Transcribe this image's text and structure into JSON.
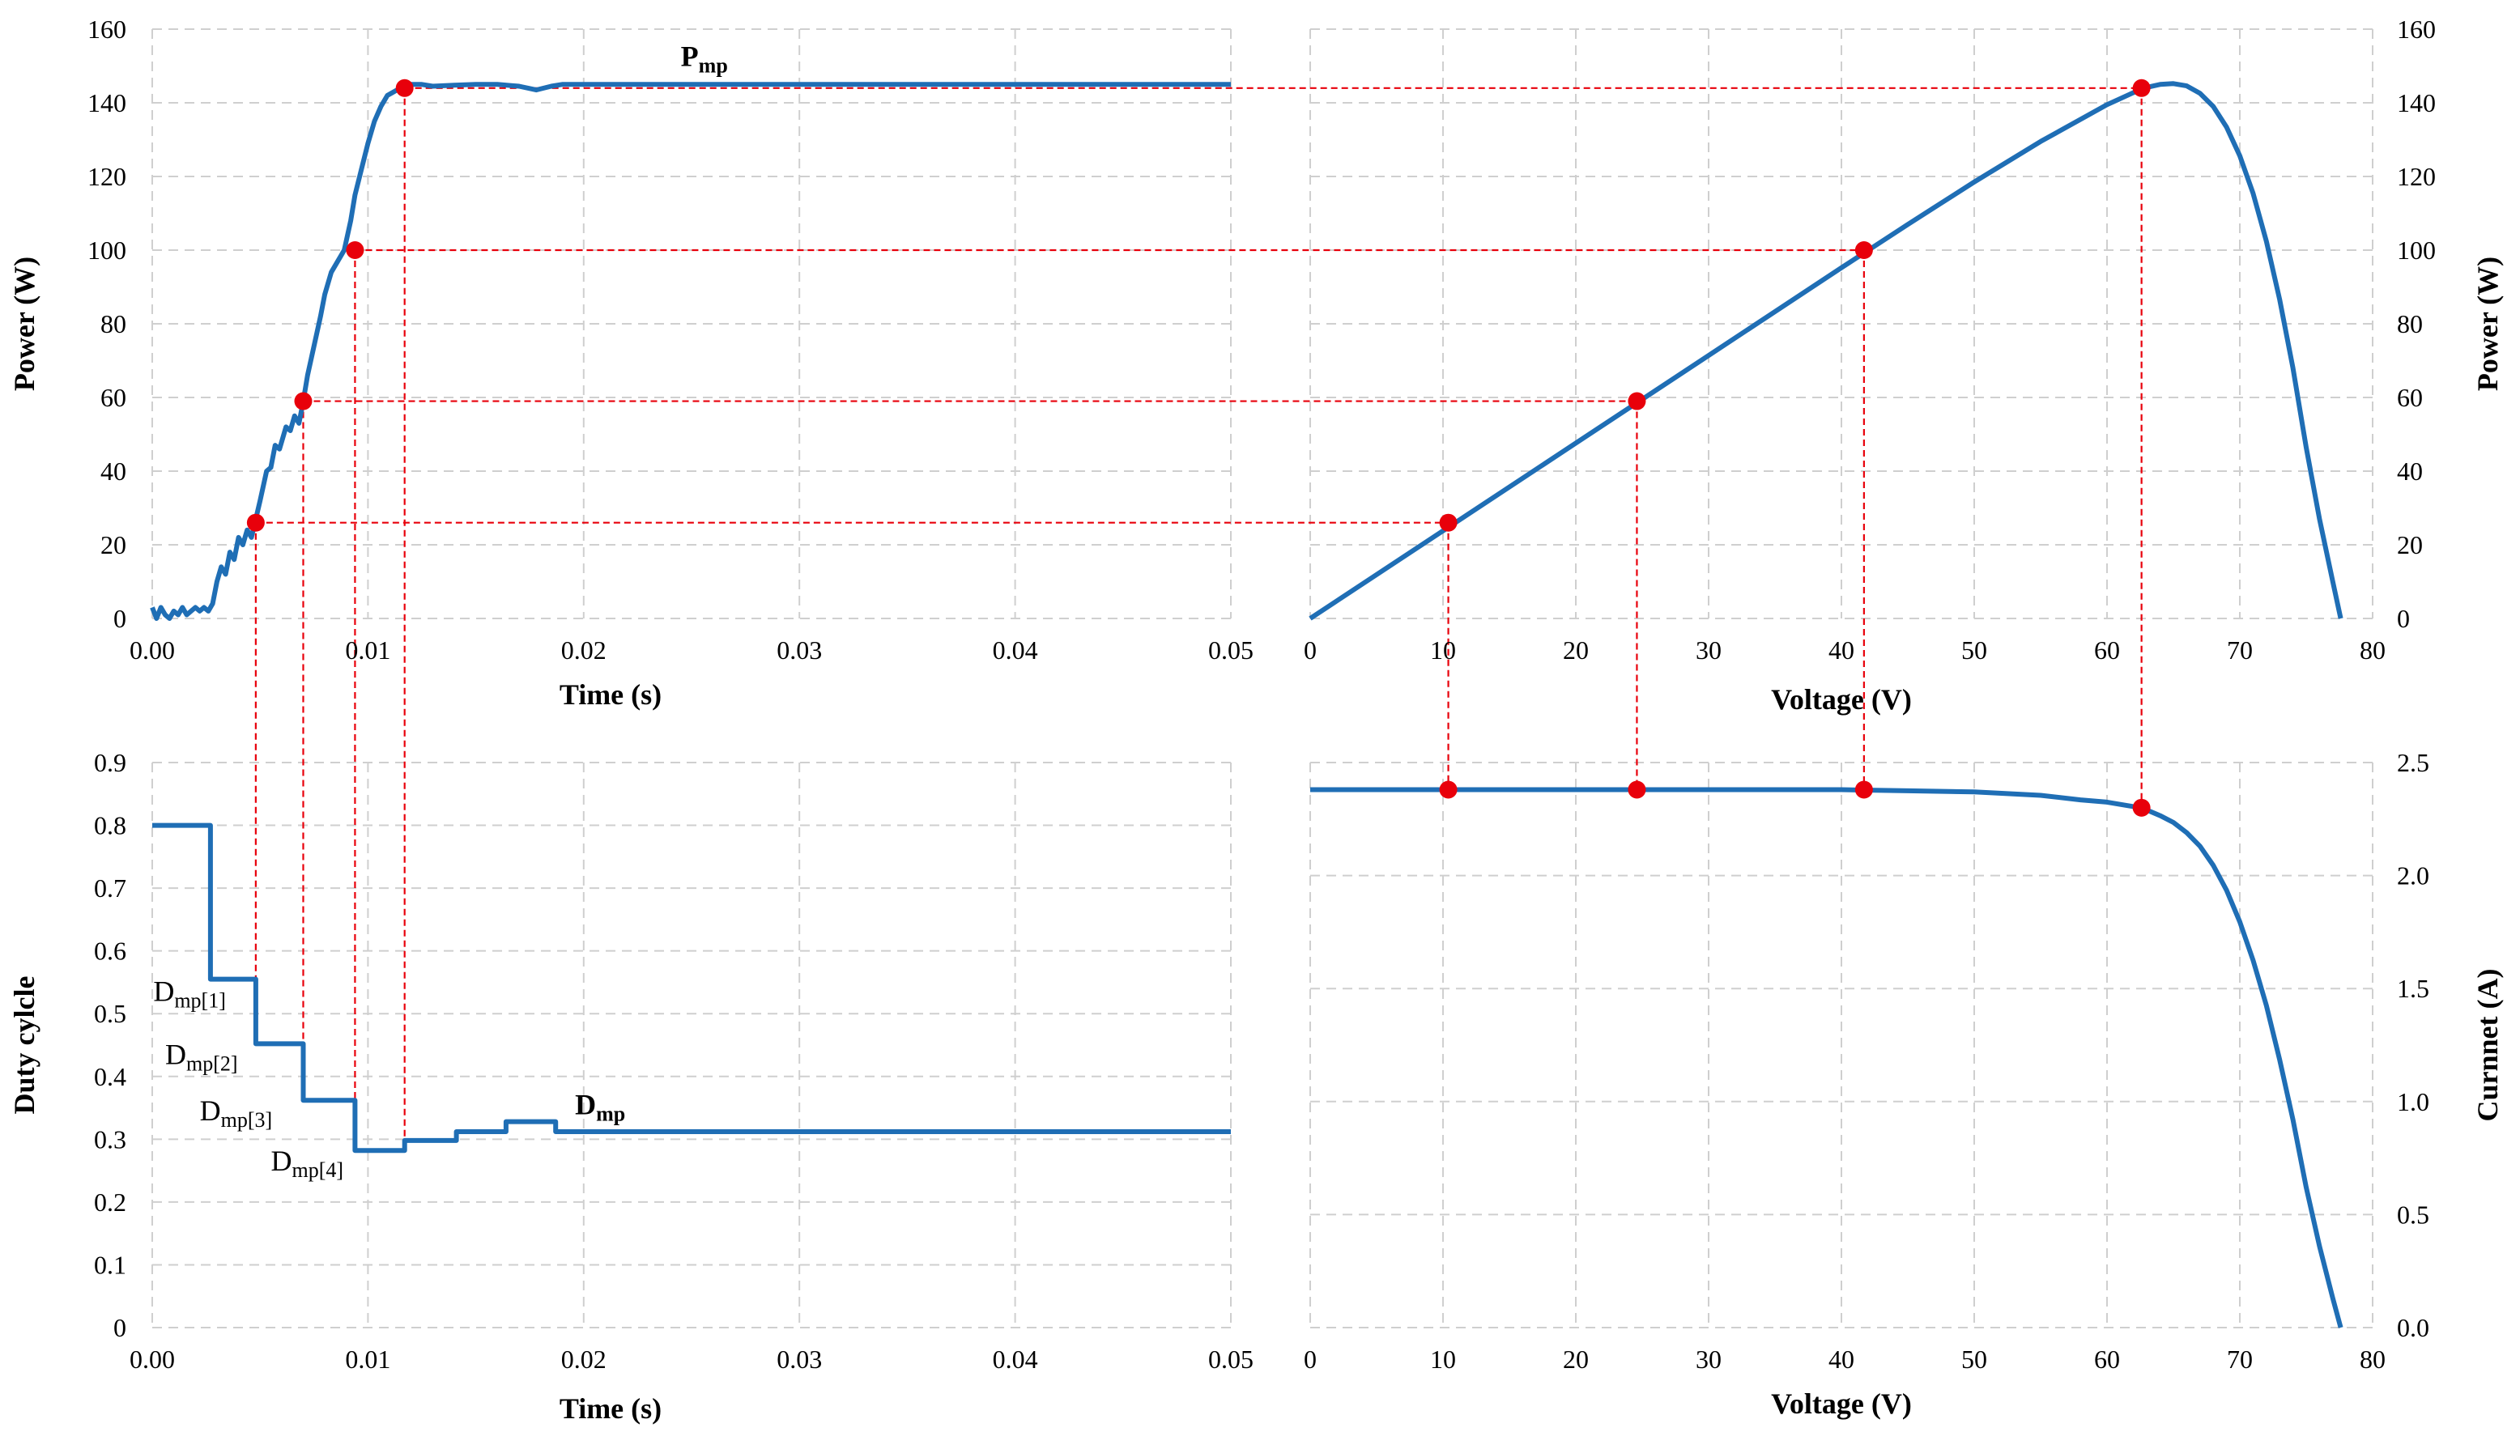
{
  "chart_data": [
    {
      "id": "tl",
      "type": "line",
      "xlabel": "Time (s)",
      "ylabel": "Power (W)",
      "xlim": [
        0,
        0.05
      ],
      "ylim": [
        0,
        160
      ],
      "x_ticks": [
        "0.00",
        "0.01",
        "0.02",
        "0.03",
        "0.04",
        "0.05"
      ],
      "y_ticks": [
        "0",
        "20",
        "40",
        "60",
        "80",
        "100",
        "120",
        "140",
        "160"
      ],
      "grid": true,
      "annotations": [
        {
          "main": "P",
          "sub": "mp",
          "x": 0.0245,
          "y": 150,
          "bold": true
        }
      ],
      "series": [
        {
          "x": [
            0,
            0.0002,
            0.0004,
            0.0006,
            0.0008,
            0.001,
            0.0012,
            0.0014,
            0.0016,
            0.0018,
            0.002,
            0.0022,
            0.0024,
            0.0026,
            0.0028,
            0.003,
            0.0032,
            0.0034,
            0.0036,
            0.0038,
            0.004,
            0.0042,
            0.0044,
            0.0046,
            0.0048,
            0.005,
            0.0053,
            0.0055,
            0.0057,
            0.0059,
            0.0062,
            0.0064,
            0.0066,
            0.0068,
            0.007,
            0.0072,
            0.0075,
            0.0078,
            0.008,
            0.0083,
            0.0086,
            0.0089,
            0.0092,
            0.0094,
            0.0097,
            0.01,
            0.0103,
            0.0106,
            0.0109,
            0.0112,
            0.0115,
            0.0118,
            0.012,
            0.0125,
            0.013,
            0.014,
            0.015,
            0.016,
            0.017,
            0.0178,
            0.0185,
            0.019,
            0.02,
            0.025,
            0.03,
            0.04,
            0.05
          ],
          "y": [
            3,
            0,
            3,
            1,
            0,
            2,
            1,
            3,
            1,
            2,
            3,
            2,
            3,
            2,
            4,
            10,
            14,
            12,
            18,
            16,
            22,
            20,
            24,
            22,
            27,
            32,
            40,
            41,
            47,
            46,
            52,
            51,
            55,
            53,
            59,
            66,
            74,
            82,
            88,
            94,
            97,
            100,
            108,
            115,
            122,
            129,
            135,
            139,
            142,
            143,
            144,
            144.5,
            145,
            145,
            144.5,
            144.8,
            145,
            145,
            144.5,
            143.5,
            144.5,
            145,
            145,
            145,
            145,
            145,
            145
          ]
        }
      ],
      "markers": [
        {
          "x": 0.0048,
          "y": 26
        },
        {
          "x": 0.007,
          "y": 59
        },
        {
          "x": 0.0094,
          "y": 100
        },
        {
          "x": 0.0117,
          "y": 144
        }
      ]
    },
    {
      "id": "tr",
      "type": "line",
      "xlabel": "Voltage (V)",
      "ylabel": "Power (W)",
      "xlim": [
        0,
        80
      ],
      "ylim": [
        0,
        160
      ],
      "x_ticks": [
        "0",
        "10",
        "20",
        "30",
        "40",
        "50",
        "60",
        "70",
        "80"
      ],
      "y_ticks": [
        "0",
        "20",
        "40",
        "60",
        "80",
        "100",
        "120",
        "140",
        "160"
      ],
      "grid": true,
      "series": [
        {
          "x": [
            0,
            10,
            20,
            30,
            40,
            45,
            50,
            55,
            58,
            60,
            62,
            63,
            64,
            65,
            66,
            67,
            68,
            69,
            70,
            71,
            72,
            73,
            74,
            75,
            76,
            77,
            77.6
          ],
          "y": [
            0,
            23.8,
            47.6,
            71.4,
            95.2,
            107,
            118.5,
            129.5,
            135.5,
            139.5,
            142.8,
            144.2,
            145,
            145.2,
            144.6,
            142.6,
            139,
            133.4,
            125.6,
            115.4,
            102.4,
            86.6,
            68,
            46.4,
            27,
            10,
            0
          ]
        }
      ],
      "markers": [
        {
          "x": 10.4,
          "y": 26
        },
        {
          "x": 24.6,
          "y": 59
        },
        {
          "x": 41.7,
          "y": 100
        },
        {
          "x": 62.6,
          "y": 144
        }
      ]
    },
    {
      "id": "bl",
      "type": "line",
      "xlabel": "Time (s)",
      "ylabel": "Duty cylcle",
      "xlim": [
        0,
        0.05
      ],
      "ylim": [
        0,
        0.9
      ],
      "x_ticks": [
        "0.00",
        "0.01",
        "0.02",
        "0.03",
        "0.04",
        "0.05"
      ],
      "y_ticks": [
        "0",
        "0.1",
        "0.2",
        "0.3",
        "0.4",
        "0.5",
        "0.6",
        "0.7",
        "0.8",
        "0.9"
      ],
      "grid": true,
      "annotations": [
        {
          "main": "D",
          "sub": "mp[1]",
          "x": 5e-05,
          "y": 0.52,
          "bold": false
        },
        {
          "main": "D",
          "sub": "mp[2]",
          "x": 0.0006,
          "y": 0.42,
          "bold": false
        },
        {
          "main": "D",
          "sub": "mp[3]",
          "x": 0.0022,
          "y": 0.33,
          "bold": false
        },
        {
          "main": "D",
          "sub": "mp[4]",
          "x": 0.0055,
          "y": 0.25,
          "bold": false
        },
        {
          "main": "D",
          "sub": "mp",
          "x": 0.0196,
          "y": 0.34,
          "bold": true
        }
      ],
      "series": [
        {
          "x": [
            0,
            0.0027,
            0.0027,
            0.0048,
            0.0048,
            0.007,
            0.007,
            0.0094,
            0.0094,
            0.0117,
            0.0117,
            0.0141,
            0.0141,
            0.0164,
            0.0164,
            0.0187,
            0.0187,
            0.05
          ],
          "y": [
            0.8,
            0.8,
            0.555,
            0.555,
            0.452,
            0.452,
            0.362,
            0.362,
            0.282,
            0.282,
            0.298,
            0.298,
            0.312,
            0.312,
            0.328,
            0.328,
            0.312,
            0.312
          ]
        }
      ],
      "guides": [
        0.0048,
        0.007,
        0.0094,
        0.0117
      ]
    },
    {
      "id": "br",
      "type": "line",
      "xlabel": "Voltage (V)",
      "ylabel": "Curnnet (A)",
      "xlim": [
        0,
        80
      ],
      "ylim": [
        0,
        2.5
      ],
      "x_ticks": [
        "0",
        "10",
        "20",
        "30",
        "40",
        "50",
        "60",
        "70",
        "80"
      ],
      "y_ticks": [
        "0.0",
        "0.5",
        "1.0",
        "1.5",
        "2.0",
        "2.5"
      ],
      "grid": true,
      "series": [
        {
          "x": [
            0,
            20,
            40,
            45,
            50,
            55,
            58,
            60,
            62,
            63,
            64,
            65,
            66,
            67,
            68,
            69,
            70,
            71,
            72,
            73,
            74,
            75,
            76,
            77,
            77.6
          ],
          "y": [
            2.38,
            2.38,
            2.38,
            2.375,
            2.37,
            2.355,
            2.335,
            2.325,
            2.305,
            2.29,
            2.265,
            2.235,
            2.19,
            2.13,
            2.045,
            1.935,
            1.795,
            1.625,
            1.425,
            1.185,
            0.92,
            0.62,
            0.36,
            0.13,
            0
          ]
        }
      ],
      "markers": [
        {
          "x": 10.4,
          "y": 2.38
        },
        {
          "x": 24.6,
          "y": 2.38
        },
        {
          "x": 41.7,
          "y": 2.38
        },
        {
          "x": 62.6,
          "y": 2.3
        }
      ]
    }
  ]
}
